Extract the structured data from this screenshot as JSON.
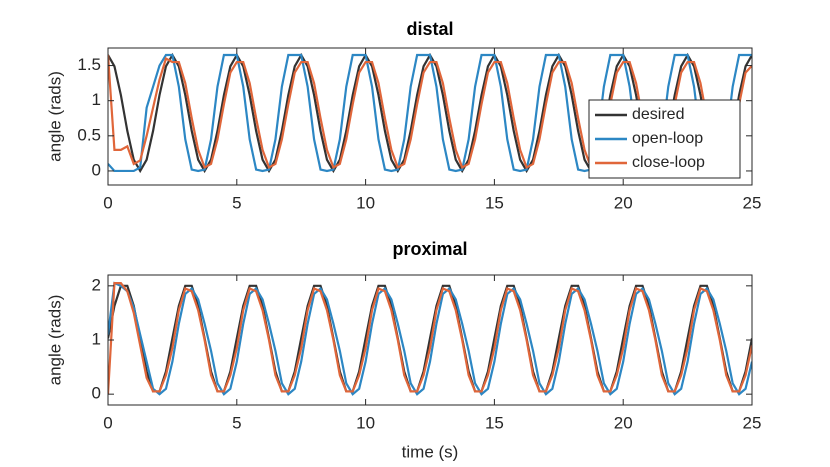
{
  "chart_data": [
    {
      "type": "line",
      "title": "distal",
      "ylabel": "angle (rads)",
      "x": [
        0,
        0.25,
        0.5,
        0.75,
        1,
        1.25,
        1.5,
        1.75,
        2,
        2.25,
        2.5,
        2.75,
        3,
        3.25,
        3.5,
        3.75,
        4,
        4.25,
        4.5,
        4.75,
        5,
        5.25,
        5.5,
        5.75,
        6,
        6.25,
        6.5,
        6.75,
        7,
        7.25,
        7.5,
        7.75,
        8,
        8.25,
        8.5,
        8.75,
        9,
        9.25,
        9.5,
        9.75,
        10,
        10.25,
        10.5,
        10.75,
        11,
        11.25,
        11.5,
        11.75,
        12,
        12.25,
        12.5,
        12.75,
        13,
        13.25,
        13.5,
        13.75,
        14,
        14.25,
        14.5,
        14.75,
        15,
        15.25,
        15.5,
        15.75,
        16,
        16.25,
        16.5,
        16.75,
        17,
        17.25,
        17.5,
        17.75,
        18,
        18.25,
        18.5,
        18.75,
        19,
        19.25,
        19.5,
        19.75,
        20,
        20.25,
        20.5,
        20.75,
        21,
        21.25,
        21.5,
        21.75,
        22,
        22.25,
        22.5,
        22.75,
        23,
        23.25,
        23.5,
        23.75,
        24,
        24.25,
        24.5,
        24.75,
        25
      ],
      "series": [
        {
          "name": "desired",
          "color": "#333333",
          "values": [
            1.65,
            1.49,
            1.08,
            0.57,
            0.16,
            0,
            0.16,
            0.57,
            1.08,
            1.49,
            1.65,
            1.49,
            1.08,
            0.57,
            0.16,
            0,
            0.16,
            0.57,
            1.08,
            1.49,
            1.65,
            1.49,
            1.08,
            0.57,
            0.16,
            0,
            0.16,
            0.57,
            1.08,
            1.49,
            1.65,
            1.49,
            1.08,
            0.57,
            0.16,
            0,
            0.16,
            0.57,
            1.08,
            1.49,
            1.65,
            1.49,
            1.08,
            0.57,
            0.16,
            0,
            0.16,
            0.57,
            1.08,
            1.49,
            1.65,
            1.49,
            1.08,
            0.57,
            0.16,
            0,
            0.16,
            0.57,
            1.08,
            1.49,
            1.65,
            1.49,
            1.08,
            0.57,
            0.16,
            0,
            0.16,
            0.57,
            1.08,
            1.49,
            1.65,
            1.49,
            1.08,
            0.57,
            0.16,
            0,
            0.16,
            0.57,
            1.08,
            1.49,
            1.65,
            1.49,
            1.08,
            0.57,
            0.16,
            0,
            0.16,
            0.57,
            1.08,
            1.49,
            1.65,
            1.49,
            1.08,
            0.57,
            0.16,
            0,
            0.16,
            0.57,
            1.08,
            1.49,
            1.65
          ]
        },
        {
          "name": "open-loop",
          "color": "#2c87c4",
          "values": [
            0.1,
            0,
            0,
            0,
            0,
            0.05,
            0.9,
            1.2,
            1.5,
            1.65,
            1.65,
            1.2,
            0.45,
            0.02,
            0,
            0.02,
            0.45,
            1.2,
            1.65,
            1.65,
            1.65,
            1.2,
            0.45,
            0.02,
            0,
            0.02,
            0.45,
            1.2,
            1.65,
            1.65,
            1.65,
            1.2,
            0.45,
            0.02,
            0,
            0.02,
            0.45,
            1.2,
            1.65,
            1.65,
            1.65,
            1.2,
            0.45,
            0.02,
            0,
            0.02,
            0.45,
            1.2,
            1.65,
            1.65,
            1.65,
            1.2,
            0.45,
            0.02,
            0,
            0.02,
            0.45,
            1.2,
            1.65,
            1.65,
            1.65,
            1.2,
            0.45,
            0.02,
            0,
            0.02,
            0.45,
            1.2,
            1.65,
            1.65,
            1.65,
            1.2,
            0.45,
            0.02,
            0,
            0.02,
            0.45,
            1.2,
            1.65,
            1.65,
            1.65,
            1.2,
            0.45,
            0.02,
            0,
            0.02,
            0.45,
            1.2,
            1.65,
            1.65,
            1.65,
            1.2,
            0.45,
            0.02,
            0,
            0.02,
            0.45,
            1.2,
            1.65,
            1.65,
            1.65
          ]
        },
        {
          "name": "close-loop",
          "color": "#e0663a",
          "values": [
            1.65,
            0.3,
            0.3,
            0.35,
            0.1,
            0.15,
            0.5,
            0.9,
            1.3,
            1.6,
            1.55,
            1.55,
            1.25,
            0.75,
            0.3,
            0.05,
            0.1,
            0.45,
            0.95,
            1.4,
            1.55,
            1.55,
            1.25,
            0.75,
            0.3,
            0.05,
            0.1,
            0.45,
            0.95,
            1.4,
            1.55,
            1.55,
            1.25,
            0.75,
            0.3,
            0.05,
            0.1,
            0.45,
            0.95,
            1.4,
            1.55,
            1.55,
            1.25,
            0.75,
            0.3,
            0.05,
            0.1,
            0.45,
            0.95,
            1.4,
            1.55,
            1.55,
            1.25,
            0.75,
            0.3,
            0.05,
            0.1,
            0.45,
            0.95,
            1.4,
            1.55,
            1.55,
            1.25,
            0.75,
            0.3,
            0.05,
            0.1,
            0.45,
            0.95,
            1.4,
            1.55,
            1.55,
            1.25,
            0.75,
            0.3,
            0.05,
            0.1,
            0.45,
            0.95,
            1.4,
            1.55,
            1.55,
            1.25,
            0.75,
            0.3,
            0.05,
            0.1,
            0.45,
            0.95,
            1.4,
            1.55,
            1.55,
            1.25,
            0.75,
            0.3,
            0.05,
            0.1,
            0.45,
            0.95,
            1.4,
            1.5
          ]
        }
      ],
      "xlim": [
        0,
        25
      ],
      "xticks": [
        0,
        5,
        10,
        15,
        20,
        25
      ],
      "ylim": [
        -0.2,
        1.75
      ],
      "yticks": [
        0,
        0.5,
        1,
        1.5
      ],
      "legend": "east"
    },
    {
      "type": "line",
      "title": "proximal",
      "ylabel": "angle (rads)",
      "xlabel": "time (s)",
      "x": [
        0,
        0.25,
        0.5,
        0.75,
        1,
        1.25,
        1.5,
        1.75,
        2,
        2.25,
        2.5,
        2.75,
        3,
        3.25,
        3.5,
        3.75,
        4,
        4.25,
        4.5,
        4.75,
        5,
        5.25,
        5.5,
        5.75,
        6,
        6.25,
        6.5,
        6.75,
        7,
        7.25,
        7.5,
        7.75,
        8,
        8.25,
        8.5,
        8.75,
        9,
        9.25,
        9.5,
        9.75,
        10,
        10.25,
        10.5,
        10.75,
        11,
        11.25,
        11.5,
        11.75,
        12,
        12.25,
        12.5,
        12.75,
        13,
        13.25,
        13.5,
        13.75,
        14,
        14.25,
        14.5,
        14.75,
        15,
        15.25,
        15.5,
        15.75,
        16,
        16.25,
        16.5,
        16.75,
        17,
        17.25,
        17.5,
        17.75,
        18,
        18.25,
        18.5,
        18.75,
        19,
        19.25,
        19.5,
        19.75,
        20,
        20.25,
        20.5,
        20.75,
        21,
        21.25,
        21.5,
        21.75,
        22,
        22.25,
        22.5,
        22.75,
        23,
        23.25,
        23.5,
        23.75,
        24,
        24.25,
        24.5,
        24.75,
        25
      ],
      "series": [
        {
          "name": "desired",
          "color": "#333333",
          "values": [
            1.03,
            1.63,
            2.0,
            2.0,
            1.63,
            1.03,
            0.42,
            0.05,
            0.05,
            0.42,
            1.03,
            1.63,
            2.0,
            2.0,
            1.63,
            1.03,
            0.42,
            0.05,
            0.05,
            0.42,
            1.03,
            1.63,
            2.0,
            2.0,
            1.63,
            1.03,
            0.42,
            0.05,
            0.05,
            0.42,
            1.03,
            1.63,
            2.0,
            2.0,
            1.63,
            1.03,
            0.42,
            0.05,
            0.05,
            0.42,
            1.03,
            1.63,
            2.0,
            2.0,
            1.63,
            1.03,
            0.42,
            0.05,
            0.05,
            0.42,
            1.03,
            1.63,
            2.0,
            2.0,
            1.63,
            1.03,
            0.42,
            0.05,
            0.05,
            0.42,
            1.03,
            1.63,
            2.0,
            2.0,
            1.63,
            1.03,
            0.42,
            0.05,
            0.05,
            0.42,
            1.03,
            1.63,
            2.0,
            2.0,
            1.63,
            1.03,
            0.42,
            0.05,
            0.05,
            0.42,
            1.03,
            1.63,
            2.0,
            2.0,
            1.63,
            1.03,
            0.42,
            0.05,
            0.05,
            0.42,
            1.03,
            1.63,
            2.0,
            2.0,
            1.63,
            1.03,
            0.42,
            0.05,
            0.05,
            0.42,
            1.03
          ]
        },
        {
          "name": "open-loop",
          "color": "#2c87c4",
          "values": [
            1.1,
            2.05,
            2.0,
            1.9,
            1.6,
            1.1,
            0.6,
            0.1,
            0,
            0.1,
            0.6,
            1.3,
            1.85,
            1.95,
            1.75,
            1.3,
            0.8,
            0.2,
            0,
            0.1,
            0.6,
            1.3,
            1.85,
            1.95,
            1.75,
            1.3,
            0.8,
            0.2,
            0,
            0.1,
            0.6,
            1.3,
            1.85,
            1.95,
            1.75,
            1.3,
            0.8,
            0.2,
            0,
            0.1,
            0.6,
            1.3,
            1.85,
            1.95,
            1.75,
            1.3,
            0.8,
            0.2,
            0,
            0.1,
            0.6,
            1.3,
            1.85,
            1.95,
            1.75,
            1.3,
            0.8,
            0.2,
            0,
            0.1,
            0.6,
            1.3,
            1.85,
            1.95,
            1.75,
            1.3,
            0.8,
            0.2,
            0,
            0.1,
            0.6,
            1.3,
            1.85,
            1.95,
            1.75,
            1.3,
            0.8,
            0.2,
            0,
            0.1,
            0.6,
            1.3,
            1.85,
            1.95,
            1.75,
            1.3,
            0.8,
            0.2,
            0,
            0.1,
            0.6,
            1.3,
            1.85,
            1.95,
            1.75,
            1.3,
            0.8,
            0.2,
            0,
            0.1,
            0.6
          ]
        },
        {
          "name": "close-loop",
          "color": "#e0663a",
          "values": [
            0,
            2.05,
            2.05,
            1.9,
            1.5,
            0.9,
            0.3,
            0.05,
            0.05,
            0.35,
            0.85,
            1.55,
            1.95,
            1.9,
            1.55,
            1.0,
            0.35,
            0.05,
            0.05,
            0.35,
            0.85,
            1.55,
            1.95,
            1.9,
            1.55,
            1.0,
            0.35,
            0.05,
            0.05,
            0.35,
            0.85,
            1.55,
            1.95,
            1.9,
            1.55,
            1.0,
            0.35,
            0.05,
            0.05,
            0.35,
            0.85,
            1.55,
            1.95,
            1.9,
            1.55,
            1.0,
            0.35,
            0.05,
            0.05,
            0.35,
            0.85,
            1.55,
            1.95,
            1.9,
            1.55,
            1.0,
            0.35,
            0.05,
            0.05,
            0.35,
            0.85,
            1.55,
            1.95,
            1.9,
            1.55,
            1.0,
            0.35,
            0.05,
            0.05,
            0.35,
            0.85,
            1.55,
            1.95,
            1.9,
            1.55,
            1.0,
            0.35,
            0.05,
            0.05,
            0.35,
            0.85,
            1.55,
            1.95,
            1.9,
            1.55,
            1.0,
            0.35,
            0.05,
            0.05,
            0.35,
            0.85,
            1.55,
            1.95,
            1.9,
            1.55,
            1.0,
            0.35,
            0.05,
            0.05,
            0.35,
            0.9
          ]
        }
      ],
      "xlim": [
        0,
        25
      ],
      "xticks": [
        0,
        5,
        10,
        15,
        20,
        25
      ],
      "ylim": [
        -0.2,
        2.2
      ],
      "yticks": [
        0,
        1,
        2
      ]
    }
  ]
}
